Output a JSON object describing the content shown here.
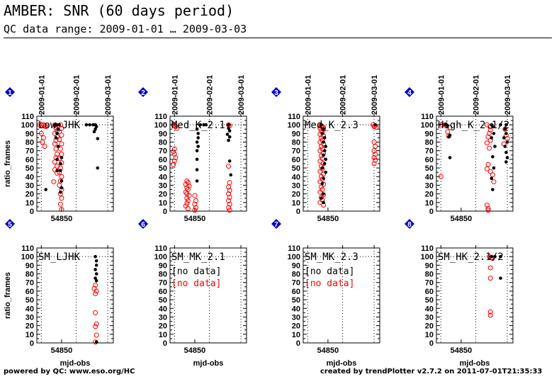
{
  "header": {
    "title": "AMBER: SNR (60 days period)",
    "subtitle": "QC data range: 2009-01-01 … 2009-03-03"
  },
  "footer": {
    "left": "powered by QC: www.eso.org/HC",
    "right": "created by trendPlotter v2.7.2 on 2011-07-01T21:35:33"
  },
  "colors": {
    "series_a": "#000000",
    "series_b": "#ff0000",
    "badge": "#0000cc"
  },
  "chart_data": {
    "type": "scatter",
    "ylabel": "ratio_frames",
    "xlabel": "mjd-obs",
    "xlim": [
      54828,
      54896
    ],
    "ylim": [
      0,
      110
    ],
    "yticks": [
      0,
      5,
      10,
      15,
      20,
      25,
      30,
      35,
      40,
      45,
      50,
      55,
      60,
      65,
      70,
      75,
      80,
      85,
      90,
      95,
      100,
      105,
      110
    ],
    "ytick_labels": [
      0,
      10,
      20,
      30,
      40,
      50,
      60,
      70,
      80,
      90,
      100,
      110
    ],
    "xtick_labels": [
      54850
    ],
    "date_ticks": [
      {
        "label": "2009-01-01",
        "mjd": 54832
      },
      {
        "label": "2009-02-01",
        "mjd": 54863
      },
      {
        "label": "2009-03-01",
        "mjd": 54891
      }
    ],
    "panels": [
      {
        "num": "1",
        "label": "Low_JHK",
        "series_a": [
          [
            54844,
            100
          ],
          [
            54846,
            100
          ],
          [
            54848,
            100
          ],
          [
            54847,
            95
          ],
          [
            54846,
            90
          ],
          [
            54845,
            85
          ],
          [
            54847,
            75
          ],
          [
            54846,
            60
          ],
          [
            54846,
            47
          ],
          [
            54849,
            55
          ],
          [
            54849,
            47
          ],
          [
            54850,
            35
          ],
          [
            54850,
            27
          ],
          [
            54849,
            22
          ],
          [
            54850,
            62
          ],
          [
            54836,
            25
          ],
          [
            54875,
            100
          ],
          [
            54878,
            100
          ],
          [
            54880,
            100
          ],
          [
            54881,
            98
          ],
          [
            54880,
            95
          ],
          [
            54879,
            92
          ],
          [
            54882,
            84
          ],
          [
            54882,
            50
          ],
          [
            54872,
            100
          ]
        ],
        "series_b": [
          [
            54830,
            100
          ],
          [
            54832,
            100
          ],
          [
            54834,
            100
          ],
          [
            54835,
            99
          ],
          [
            54836,
            98
          ],
          [
            54832,
            90
          ],
          [
            54834,
            85
          ],
          [
            54833,
            80
          ],
          [
            54835,
            75
          ],
          [
            54844,
            100
          ],
          [
            54845,
            99
          ],
          [
            54845,
            96
          ],
          [
            54846,
            93
          ],
          [
            54844,
            90
          ],
          [
            54846,
            86
          ],
          [
            54845,
            82
          ],
          [
            54844,
            78
          ],
          [
            54845,
            72
          ],
          [
            54846,
            66
          ],
          [
            54845,
            62
          ],
          [
            54844,
            57
          ],
          [
            54846,
            52
          ],
          [
            54844,
            48
          ],
          [
            54846,
            44
          ],
          [
            54849,
            100
          ],
          [
            54850,
            96
          ],
          [
            54848,
            92
          ],
          [
            54850,
            88
          ],
          [
            54848,
            83
          ],
          [
            54850,
            78
          ],
          [
            54849,
            72
          ],
          [
            54850,
            66
          ],
          [
            54848,
            61
          ],
          [
            54850,
            56
          ],
          [
            54849,
            50
          ],
          [
            54848,
            45
          ],
          [
            54850,
            40
          ],
          [
            54849,
            35
          ],
          [
            54848,
            30
          ],
          [
            54850,
            25
          ],
          [
            54849,
            20
          ],
          [
            54850,
            15
          ],
          [
            54849,
            8
          ],
          [
            54850,
            2
          ],
          [
            54843,
            34
          ]
        ],
        "no_data": false
      },
      {
        "num": "2",
        "label": "Med_K_2.1",
        "series_a": [
          [
            54855,
            100
          ],
          [
            54858,
            100
          ],
          [
            54860,
            100
          ],
          [
            54852,
            95
          ],
          [
            54853,
            90
          ],
          [
            54853,
            85
          ],
          [
            54852,
            80
          ],
          [
            54853,
            75
          ],
          [
            54852,
            70
          ],
          [
            54852,
            60
          ],
          [
            54852,
            48
          ],
          [
            54852,
            35
          ],
          [
            54880,
            100
          ],
          [
            54880,
            96
          ],
          [
            54881,
            93
          ],
          [
            54879,
            89
          ],
          [
            54881,
            86
          ],
          [
            54880,
            82
          ],
          [
            54881,
            58
          ],
          [
            54882,
            42
          ]
        ],
        "series_b": [
          [
            54831,
            100
          ],
          [
            54832,
            99
          ],
          [
            54833,
            98
          ],
          [
            54834,
            96
          ],
          [
            54832,
            72
          ],
          [
            54831,
            69
          ],
          [
            54832,
            66
          ],
          [
            54833,
            62
          ],
          [
            54832,
            58
          ],
          [
            54831,
            54
          ],
          [
            54843,
            35
          ],
          [
            54844,
            33
          ],
          [
            54842,
            31
          ],
          [
            54845,
            29
          ],
          [
            54843,
            27
          ],
          [
            54844,
            25
          ],
          [
            54842,
            22
          ],
          [
            54843,
            20
          ],
          [
            54845,
            18
          ],
          [
            54843,
            15
          ],
          [
            54844,
            12
          ],
          [
            54843,
            9
          ],
          [
            54842,
            6
          ],
          [
            54844,
            3
          ],
          [
            54850,
            18
          ],
          [
            54851,
            12
          ],
          [
            54850,
            8
          ],
          [
            54851,
            4
          ],
          [
            54850,
            1
          ],
          [
            54880,
            100
          ],
          [
            54881,
            99
          ],
          [
            54880,
            52
          ],
          [
            54881,
            33
          ],
          [
            54880,
            28
          ],
          [
            54881,
            24
          ],
          [
            54880,
            20
          ],
          [
            54881,
            16
          ],
          [
            54880,
            12
          ],
          [
            54881,
            8
          ],
          [
            54880,
            4
          ],
          [
            54881,
            1
          ]
        ],
        "no_data": false
      },
      {
        "num": "3",
        "label": "Med_K_2.3",
        "series_a": [
          [
            54844,
            100
          ],
          [
            54846,
            95
          ],
          [
            54845,
            90
          ],
          [
            54847,
            85
          ],
          [
            54846,
            80
          ],
          [
            54848,
            75
          ],
          [
            54847,
            70
          ],
          [
            54846,
            65
          ],
          [
            54848,
            60
          ],
          [
            54847,
            55
          ],
          [
            54845,
            50
          ],
          [
            54848,
            45
          ],
          [
            54846,
            38
          ],
          [
            54845,
            32
          ],
          [
            54846,
            20
          ],
          [
            54844,
            15
          ],
          [
            54846,
            10
          ],
          [
            54892,
            100
          ]
        ],
        "series_b": [
          [
            54843,
            100
          ],
          [
            54844,
            99
          ],
          [
            54845,
            98
          ],
          [
            54846,
            97
          ],
          [
            54843,
            96
          ],
          [
            54846,
            95
          ],
          [
            54844,
            93
          ],
          [
            54845,
            91
          ],
          [
            54843,
            89
          ],
          [
            54846,
            87
          ],
          [
            54844,
            85
          ],
          [
            54845,
            82
          ],
          [
            54843,
            80
          ],
          [
            54846,
            78
          ],
          [
            54844,
            75
          ],
          [
            54845,
            72
          ],
          [
            54843,
            70
          ],
          [
            54846,
            67
          ],
          [
            54844,
            64
          ],
          [
            54845,
            61
          ],
          [
            54843,
            58
          ],
          [
            54846,
            55
          ],
          [
            54844,
            52
          ],
          [
            54845,
            49
          ],
          [
            54843,
            46
          ],
          [
            54846,
            43
          ],
          [
            54844,
            40
          ],
          [
            54845,
            37
          ],
          [
            54843,
            34
          ],
          [
            54846,
            31
          ],
          [
            54844,
            28
          ],
          [
            54845,
            25
          ],
          [
            54843,
            22
          ],
          [
            54846,
            19
          ],
          [
            54844,
            16
          ],
          [
            54845,
            13
          ],
          [
            54843,
            10
          ],
          [
            54846,
            7
          ],
          [
            54890,
            100
          ],
          [
            54892,
            99
          ],
          [
            54891,
            98
          ],
          [
            54893,
            97
          ],
          [
            54891,
            80
          ],
          [
            54892,
            75
          ],
          [
            54891,
            70
          ],
          [
            54892,
            66
          ],
          [
            54891,
            62
          ],
          [
            54892,
            59
          ],
          [
            54891,
            55
          ]
        ],
        "no_data": false
      },
      {
        "num": "4",
        "label": "High_K_2.1/2",
        "series_a": [
          [
            54836,
            100
          ],
          [
            54838,
            99
          ],
          [
            54840,
            88
          ],
          [
            54839,
            86
          ],
          [
            54840,
            62
          ],
          [
            54877,
            100
          ],
          [
            54878,
            98
          ],
          [
            54879,
            90
          ],
          [
            54877,
            85
          ],
          [
            54880,
            75
          ],
          [
            54878,
            63
          ],
          [
            54879,
            50
          ],
          [
            54877,
            38
          ],
          [
            54878,
            25
          ],
          [
            54885,
            100
          ],
          [
            54890,
            100
          ],
          [
            54889,
            95
          ],
          [
            54890,
            90
          ],
          [
            54888,
            85
          ],
          [
            54891,
            80
          ],
          [
            54889,
            75
          ],
          [
            54890,
            68
          ],
          [
            54891,
            62
          ],
          [
            54890,
            57
          ]
        ],
        "series_b": [
          [
            54833,
            100
          ],
          [
            54836,
            100
          ],
          [
            54840,
            97
          ],
          [
            54838,
            92
          ],
          [
            54839,
            87
          ],
          [
            54832,
            40
          ],
          [
            54873,
            100
          ],
          [
            54876,
            98
          ],
          [
            54876,
            94
          ],
          [
            54875,
            90
          ],
          [
            54874,
            86
          ],
          [
            54876,
            82
          ],
          [
            54873,
            79
          ],
          [
            54875,
            73
          ],
          [
            54874,
            54
          ],
          [
            54876,
            46
          ],
          [
            54873,
            49
          ],
          [
            54878,
            42
          ],
          [
            54879,
            34
          ],
          [
            54873,
            7
          ],
          [
            54874,
            3
          ],
          [
            54874,
            1
          ],
          [
            54889,
            95
          ],
          [
            54890,
            88
          ],
          [
            54891,
            84
          ],
          [
            54888,
            78
          ]
        ],
        "no_data": false
      },
      {
        "num": "5",
        "label": "SM_LJHK",
        "series_a": [
          [
            54880,
            100
          ],
          [
            54881,
            95
          ],
          [
            54881,
            90
          ],
          [
            54880,
            85
          ],
          [
            54881,
            80
          ],
          [
            54880,
            75
          ],
          [
            54881,
            72
          ],
          [
            54881,
            1
          ]
        ],
        "series_b": [
          [
            54880,
            67
          ],
          [
            54879,
            63
          ],
          [
            54881,
            60
          ],
          [
            54880,
            57
          ],
          [
            54880,
            35
          ],
          [
            54881,
            22
          ],
          [
            54880,
            19
          ],
          [
            54881,
            9
          ],
          [
            54880,
            1
          ]
        ],
        "no_data": false
      },
      {
        "num": "6",
        "label": "SM_MK_2.1",
        "series_a": [],
        "series_b": [],
        "no_data": true,
        "no_data_a": "[no data]",
        "no_data_b": "[no data]"
      },
      {
        "num": "7",
        "label": "SM_MK_2.3",
        "series_a": [],
        "series_b": [],
        "no_data": true,
        "no_data_a": "[no data]",
        "no_data_b": "[no data]"
      },
      {
        "num": "8",
        "label": "SM_HK_2.1/2",
        "series_a": [
          [
            54877,
            100
          ],
          [
            54880,
            100
          ],
          [
            54885,
            100
          ],
          [
            54885,
            75
          ]
        ],
        "series_b": [
          [
            54875,
            100
          ],
          [
            54877,
            99
          ],
          [
            54878,
            98
          ],
          [
            54876,
            87
          ],
          [
            54876,
            75
          ],
          [
            54876,
            36
          ],
          [
            54876,
            32
          ]
        ],
        "no_data": false
      }
    ]
  }
}
